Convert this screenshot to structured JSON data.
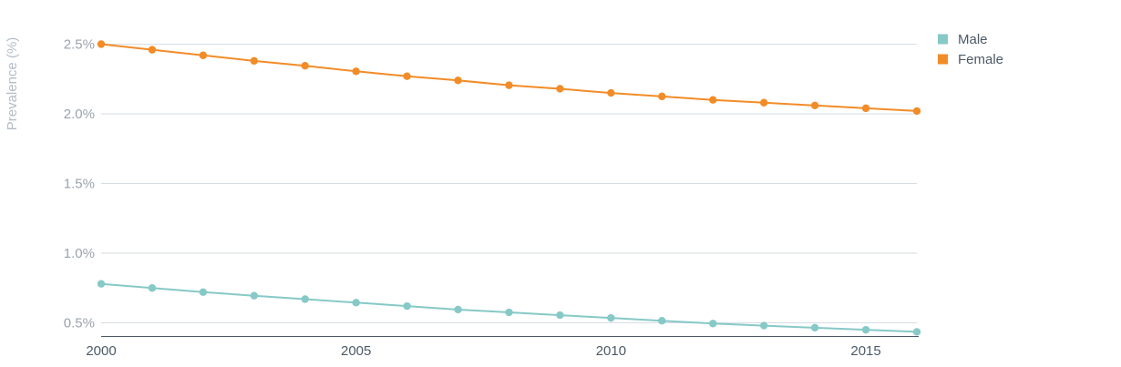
{
  "chart_data": {
    "type": "line",
    "title": "",
    "xlabel": "",
    "ylabel": "Prevalence (%)",
    "x": [
      2000,
      2001,
      2002,
      2003,
      2004,
      2005,
      2006,
      2007,
      2008,
      2009,
      2010,
      2011,
      2012,
      2013,
      2014,
      2015,
      2016
    ],
    "xticks": [
      2000,
      2005,
      2010,
      2015
    ],
    "xtick_labels": [
      "2000",
      "2005",
      "2010",
      "2015"
    ],
    "yticks": [
      0.5,
      1.0,
      1.5,
      2.0,
      2.5
    ],
    "ytick_labels": [
      "0.5%",
      "1.0%",
      "1.5%",
      "2.0%",
      "2.5%"
    ],
    "ylim": [
      0.4,
      2.5
    ],
    "xlim": [
      2000,
      2016
    ],
    "grid": true,
    "legend_position": "top-right",
    "series": [
      {
        "name": "Male",
        "color": "#86c9c6",
        "values": [
          0.78,
          0.75,
          0.72,
          0.695,
          0.67,
          0.645,
          0.62,
          0.595,
          0.575,
          0.555,
          0.535,
          0.515,
          0.495,
          0.48,
          0.465,
          0.45,
          0.435
        ]
      },
      {
        "name": "Female",
        "color": "#f28c28",
        "values": [
          2.5,
          2.46,
          2.42,
          2.38,
          2.345,
          2.305,
          2.27,
          2.24,
          2.205,
          2.18,
          2.15,
          2.125,
          2.1,
          2.08,
          2.06,
          2.04,
          2.02
        ]
      }
    ]
  }
}
